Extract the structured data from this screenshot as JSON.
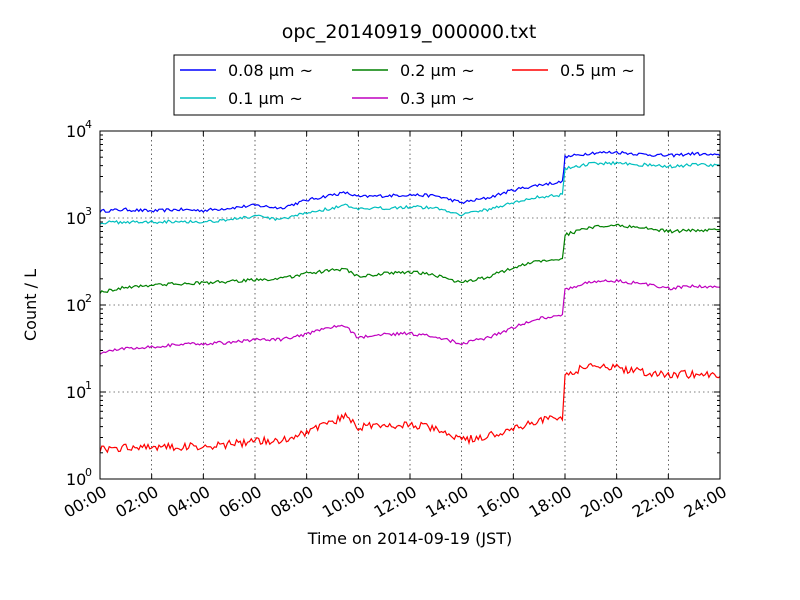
{
  "chart_data": {
    "type": "line",
    "title": "opc_20140919_000000.txt",
    "xlabel": "Time on 2014-09-19 (JST)",
    "ylabel": "Count / L",
    "x_unit": "hour",
    "xlim": [
      0,
      24
    ],
    "ylim": [
      1,
      10000
    ],
    "yscale": "log",
    "grid": true,
    "legend_position": "top",
    "x_ticks": [
      {
        "value": 0,
        "label": "00:00"
      },
      {
        "value": 2,
        "label": "02:00"
      },
      {
        "value": 4,
        "label": "04:00"
      },
      {
        "value": 6,
        "label": "06:00"
      },
      {
        "value": 8,
        "label": "08:00"
      },
      {
        "value": 10,
        "label": "10:00"
      },
      {
        "value": 12,
        "label": "12:00"
      },
      {
        "value": 14,
        "label": "14:00"
      },
      {
        "value": 16,
        "label": "16:00"
      },
      {
        "value": 18,
        "label": "18:00"
      },
      {
        "value": 20,
        "label": "20:00"
      },
      {
        "value": 22,
        "label": "22:00"
      },
      {
        "value": 24,
        "label": "24:00"
      }
    ],
    "y_ticks": [
      {
        "value": 1,
        "base": "10",
        "exp": "0"
      },
      {
        "value": 10,
        "base": "10",
        "exp": "1"
      },
      {
        "value": 100,
        "base": "10",
        "exp": "2"
      },
      {
        "value": 1000,
        "base": "10",
        "exp": "3"
      },
      {
        "value": 10000,
        "base": "10",
        "exp": "4"
      }
    ],
    "series": [
      {
        "name": "0.08 μm ~",
        "color": "#0000ff",
        "x": [
          0,
          1,
          2,
          3,
          4,
          5,
          6,
          7,
          8,
          9,
          9.5,
          10,
          11,
          12,
          13,
          14,
          15,
          16,
          17,
          17.9,
          18,
          19,
          20,
          21,
          22,
          23,
          24
        ],
        "y": [
          1200,
          1250,
          1200,
          1250,
          1220,
          1300,
          1400,
          1300,
          1600,
          1850,
          1950,
          1750,
          1800,
          1850,
          1800,
          1500,
          1700,
          2100,
          2400,
          2600,
          5000,
          5600,
          5700,
          5400,
          5200,
          5500,
          5200
        ]
      },
      {
        "name": "0.1 μm ~",
        "color": "#00bfbf",
        "x": [
          0,
          1,
          2,
          3,
          4,
          5,
          6,
          7,
          8,
          9,
          9.5,
          10,
          11,
          12,
          13,
          14,
          15,
          16,
          17,
          17.9,
          18,
          19,
          20,
          21,
          22,
          23,
          24
        ],
        "y": [
          880,
          900,
          900,
          920,
          900,
          960,
          1050,
          950,
          1150,
          1300,
          1400,
          1250,
          1300,
          1350,
          1300,
          1100,
          1250,
          1500,
          1750,
          1850,
          3700,
          4200,
          4300,
          4100,
          3900,
          4100,
          4000
        ]
      },
      {
        "name": "0.2 μm ~",
        "color": "#008000",
        "x": [
          0,
          1,
          2,
          3,
          4,
          5,
          6,
          7,
          8,
          9,
          9.5,
          10,
          11,
          12,
          13,
          14,
          15,
          16,
          17,
          17.9,
          18,
          19,
          20,
          21,
          22,
          23,
          24
        ],
        "y": [
          140,
          160,
          170,
          175,
          180,
          185,
          195,
          200,
          230,
          250,
          260,
          210,
          230,
          240,
          220,
          180,
          210,
          270,
          320,
          340,
          640,
          780,
          820,
          780,
          700,
          720,
          730
        ]
      },
      {
        "name": "0.3 μm ~",
        "color": "#bf00bf",
        "x": [
          0,
          1,
          2,
          3,
          4,
          5,
          6,
          7,
          8,
          9,
          9.5,
          10,
          11,
          12,
          13,
          14,
          15,
          16,
          17,
          17.9,
          18,
          19,
          20,
          21,
          22,
          23,
          24
        ],
        "y": [
          28,
          32,
          33,
          35,
          36,
          37,
          40,
          40,
          46,
          56,
          57,
          42,
          46,
          47,
          43,
          36,
          42,
          55,
          70,
          78,
          150,
          185,
          190,
          175,
          155,
          165,
          160
        ]
      },
      {
        "name": "0.5 μm ~",
        "color": "#ff0000",
        "x": [
          0,
          1,
          2,
          3,
          4,
          5,
          6,
          7,
          8,
          9,
          9.5,
          10,
          11,
          12,
          13,
          14,
          15,
          16,
          17,
          17.9,
          18,
          19,
          20,
          21,
          22,
          23,
          24
        ],
        "y": [
          2.2,
          2.3,
          2.4,
          2.3,
          2.4,
          2.5,
          2.7,
          2.8,
          3.5,
          4.5,
          5.2,
          4.0,
          4.0,
          4.2,
          3.8,
          2.8,
          3.1,
          3.8,
          4.8,
          5.0,
          16,
          20,
          19,
          17,
          16,
          16,
          15
        ]
      }
    ]
  }
}
